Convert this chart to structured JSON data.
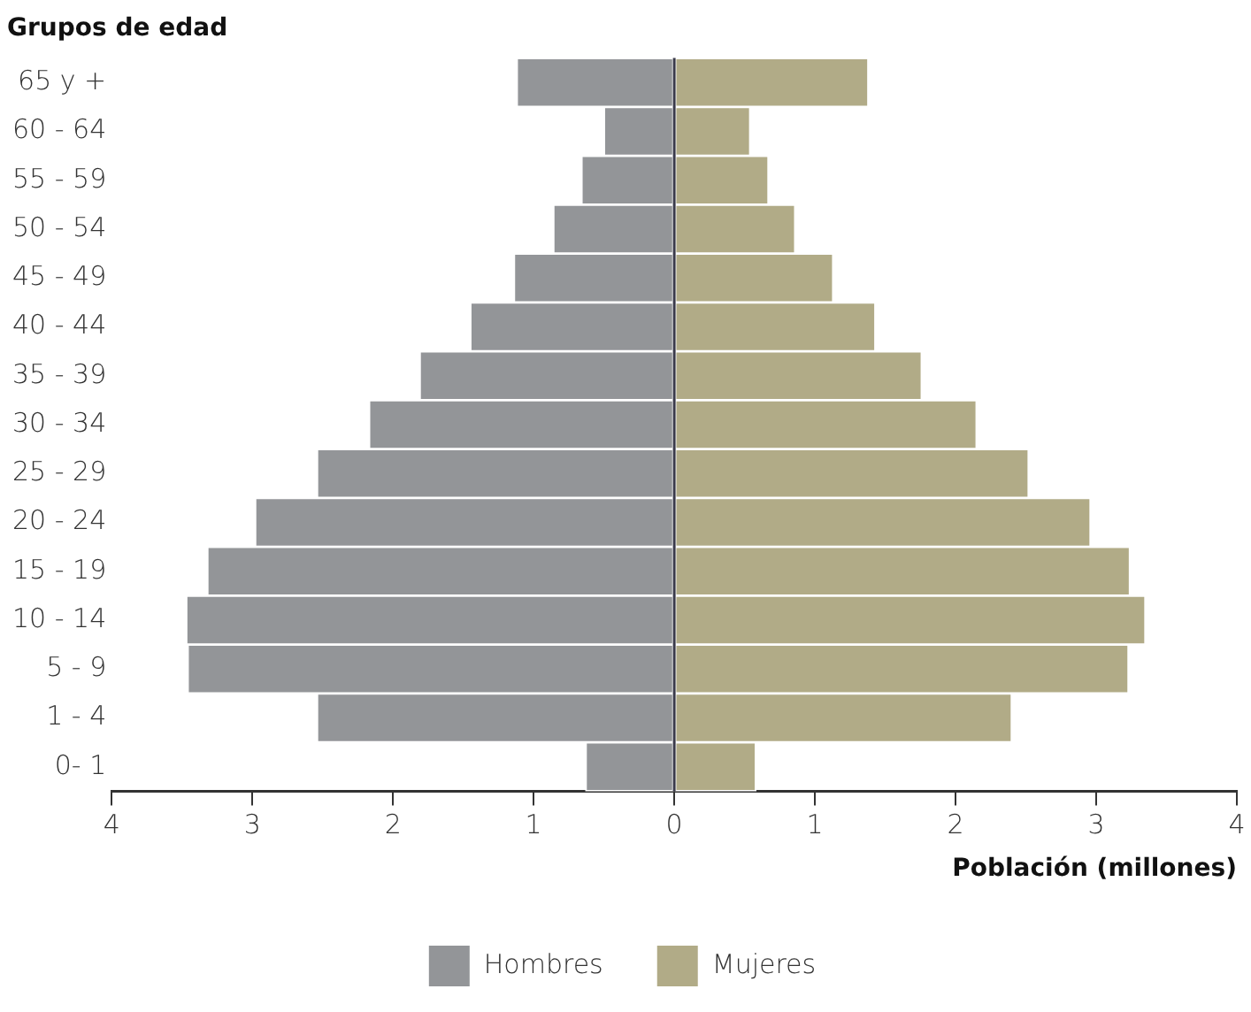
{
  "chart_data": {
    "type": "bar",
    "orientation": "horizontal",
    "stacked": true,
    "ylabel": "Grupos de edad",
    "xlabel": "Población (millones)",
    "categories": [
      "65 y +",
      "60 - 64",
      "55 - 59",
      "50 - 54",
      "45 - 49",
      "40 - 44",
      "35 - 39",
      "30 - 34",
      "25 - 29",
      "20 - 24",
      "15 - 19",
      "10 - 14",
      "5 - 9",
      "1 - 4",
      "0- 1"
    ],
    "series": [
      {
        "name": "Hombres",
        "color": "#939598",
        "values": [
          -1.12,
          -0.5,
          -0.66,
          -0.86,
          -1.14,
          -1.45,
          -1.81,
          -2.17,
          -2.54,
          -2.98,
          -3.32,
          -3.47,
          -3.46,
          -2.54,
          -0.63
        ]
      },
      {
        "name": "Mujeres",
        "color": "#b1ab87",
        "values": [
          1.38,
          0.54,
          0.67,
          0.86,
          1.13,
          1.43,
          1.76,
          2.15,
          2.52,
          2.96,
          3.24,
          3.35,
          3.23,
          2.4,
          0.58
        ]
      }
    ],
    "xlim": [
      -4,
      4
    ],
    "xticks": [
      {
        "value": -4,
        "label": "4"
      },
      {
        "value": -3,
        "label": "3"
      },
      {
        "value": -2,
        "label": "2"
      },
      {
        "value": -1,
        "label": "1"
      },
      0,
      1,
      2,
      3,
      4
    ],
    "ref_lines": [
      {
        "axis": "x",
        "value": 0,
        "color": "#3a3a4a"
      }
    ],
    "grid": false,
    "legend": "bottom"
  }
}
